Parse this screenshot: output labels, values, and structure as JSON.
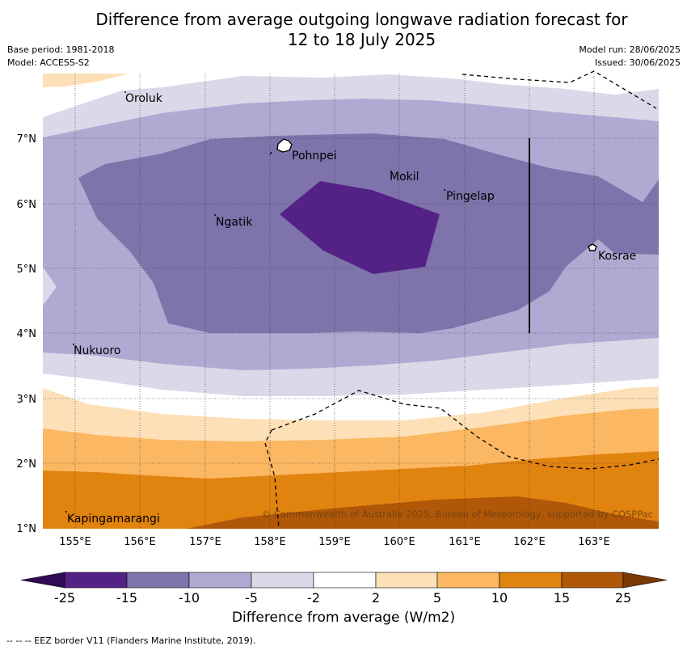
{
  "header": {
    "title_line1": "Difference from average outgoing longwave radiation forecast for",
    "title_line2": "12 to 18 July 2025",
    "base_period": "Base period: 1981-2018",
    "model": "Model: ACCESS-S2",
    "model_run": "Model run: 28/06/2025",
    "issued": "Issued: 30/06/2025"
  },
  "map": {
    "lon_labels": [
      "155°E",
      "156°E",
      "157°E",
      "158°E",
      "159°E",
      "160°E",
      "161°E",
      "162°E",
      "163°E"
    ],
    "lat_labels": [
      "7°N",
      "6°N",
      "5°N",
      "4°N",
      "3°N",
      "2°N",
      "1°N"
    ],
    "places": [
      "Oroluk",
      "Pohnpei",
      "Mokil",
      "Pingelap",
      "Ngatik",
      "Kosrae",
      "Nukuoro",
      "Kapingamarangi"
    ],
    "copyright": "© Commonwealth of Australia 2025, Bureau of Meteorology, supported by COSPPac"
  },
  "colorbar": {
    "ticks": [
      "-25",
      "-15",
      "-10",
      "-5",
      "-2",
      "2",
      "5",
      "10",
      "15",
      "25"
    ],
    "colors": [
      "#542287",
      "#7f73ab",
      "#b0aad2",
      "#d9d9ea",
      "#ffffff",
      "#fde0b7",
      "#fbb762",
      "#e1830f",
      "#b05808"
    ],
    "extend_low": "#2f0a55",
    "extend_high": "#7a3a05",
    "label": "Difference from average (W/m2)"
  },
  "footer": {
    "eez_note": "--  --  -- EEZ border V11 (Flanders Marine Institute, 2019)."
  }
}
